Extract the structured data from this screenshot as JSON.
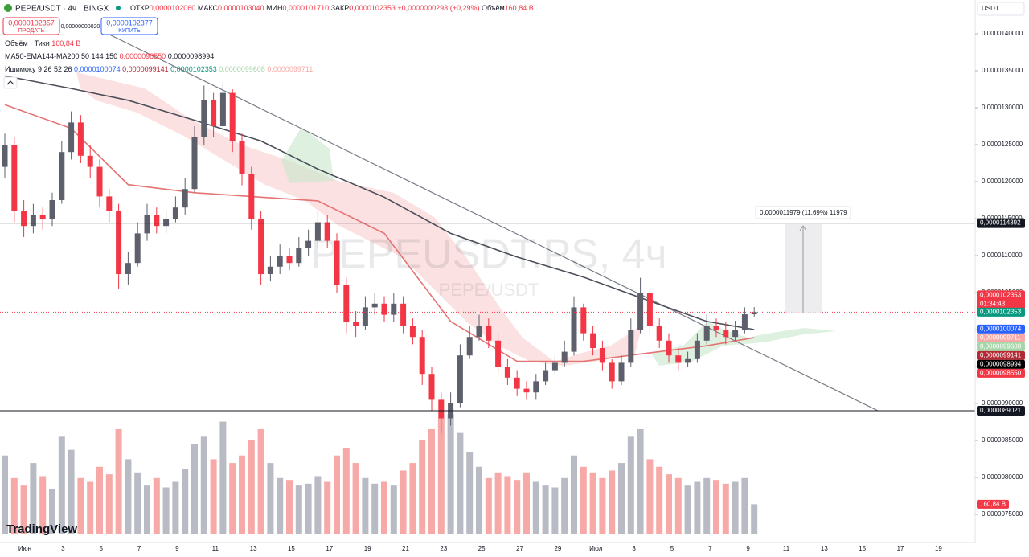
{
  "header": {
    "symbol": "PEPE/USDT · 4ч · BINGX",
    "open_label": "ОТКР",
    "open": "0,0000102060",
    "high_label": "МАКС",
    "high": "0,0000103040",
    "low_label": "МИН",
    "low": "0,0000101710",
    "close_label": "ЗАКР",
    "close": "0,0000102353",
    "change": "+0,0000000293 (+0,29%)",
    "volume_label": "Объём",
    "volume": "160,84 B"
  },
  "trade": {
    "sell_price": "0,0000102357",
    "sell_label": "ПРОДАТЬ",
    "spread": "0,00000000020",
    "buy_price": "0,0000102377",
    "buy_label": "КУПИТЬ"
  },
  "indicators": {
    "volume": {
      "name": "Объём · Тики",
      "value": "160,84 B"
    },
    "ma": {
      "name": "MA50-EMA144-MA200 50 144 150",
      "values": [
        "0,0000098550",
        "0,0000098994"
      ]
    },
    "ichimoku": {
      "name": "Ишимоку 9 26 52 26",
      "values": [
        "0,0000100074",
        "0,0000099141",
        "0,0000102353",
        "0,0000099608",
        "0,0000099711"
      ]
    }
  },
  "watermark": {
    "symbol": "PEPEUSDT.PS, 4ч",
    "pair": "PEPE/USDT"
  },
  "currency": "USDT",
  "measure": "0,0000011979 (11,69%) 11979",
  "logo": "TradingView",
  "countdown": "01:34:43",
  "chart_data": {
    "type": "candlestick",
    "ylim": [
      7.1522e-06,
      1.44565e-05
    ],
    "yticks": [
      {
        "value": 1.4e-05,
        "label": "0,0000140000"
      },
      {
        "value": 1.35e-05,
        "label": "0,0000135000"
      },
      {
        "value": 1.3e-05,
        "label": "0,0000130000"
      },
      {
        "value": 1.25e-05,
        "label": "0,0000125000"
      },
      {
        "value": 1.2e-05,
        "label": "0,0000120000"
      },
      {
        "value": 1.15e-05,
        "label": "0,0000115000"
      },
      {
        "value": 1.1e-05,
        "label": "0,0000110000"
      },
      {
        "value": 1.05e-05,
        "label": "0,0000105000"
      },
      {
        "value": 1e-05,
        "label": "0,0000100000"
      },
      {
        "value": 9.5e-06,
        "label": "0,0000095000"
      },
      {
        "value": 9e-06,
        "label": "0,0000090000"
      },
      {
        "value": 8.5e-06,
        "label": "0,0000085000"
      },
      {
        "value": 8e-06,
        "label": "0,0000080000"
      },
      {
        "value": 7.5e-06,
        "label": "0,0000075000"
      }
    ],
    "x_labels": [
      "Июн",
      "3",
      "5",
      "7",
      "9",
      "11",
      "13",
      "15",
      "17",
      "19",
      "21",
      "23",
      "25",
      "27",
      "29",
      "Июл",
      "3",
      "5",
      "7",
      "9",
      "11",
      "13",
      "15",
      "17",
      "19"
    ],
    "up_color": "#5d606b",
    "down_color": "#f23645",
    "volume_up_color": "#b8bbc3",
    "volume_down_color": "#f7a9a7",
    "candles": [
      [
        1.22e-05,
        1.265e-05,
        1.205e-05,
        1.25e-05
      ],
      [
        1.25e-05,
        1.26e-05,
        1.145e-05,
        1.16e-05
      ],
      [
        1.16e-05,
        1.175e-05,
        1.125e-05,
        1.14e-05
      ],
      [
        1.14e-05,
        1.17e-05,
        1.13e-05,
        1.155e-05
      ],
      [
        1.155e-05,
        1.165e-05,
        1.135e-05,
        1.15e-05
      ],
      [
        1.15e-05,
        1.185e-05,
        1.14e-05,
        1.175e-05
      ],
      [
        1.175e-05,
        1.255e-05,
        1.17e-05,
        1.24e-05
      ],
      [
        1.24e-05,
        1.295e-05,
        1.23e-05,
        1.28e-05
      ],
      [
        1.28e-05,
        1.29e-05,
        1.225e-05,
        1.235e-05
      ],
      [
        1.235e-05,
        1.25e-05,
        1.205e-05,
        1.22e-05
      ],
      [
        1.22e-05,
        1.23e-05,
        1.165e-05,
        1.18e-05
      ],
      [
        1.18e-05,
        1.19e-05,
        1.145e-05,
        1.16e-05
      ],
      [
        1.16e-05,
        1.17e-05,
        1.055e-05,
        1.075e-05
      ],
      [
        1.075e-05,
        1.105e-05,
        1.06e-05,
        1.09e-05
      ],
      [
        1.09e-05,
        1.145e-05,
        1.085e-05,
        1.13e-05
      ],
      [
        1.13e-05,
        1.17e-05,
        1.12e-05,
        1.155e-05
      ],
      [
        1.155e-05,
        1.165e-05,
        1.13e-05,
        1.14e-05
      ],
      [
        1.14e-05,
        1.16e-05,
        1.13e-05,
        1.15e-05
      ],
      [
        1.15e-05,
        1.18e-05,
        1.145e-05,
        1.165e-05
      ],
      [
        1.165e-05,
        1.205e-05,
        1.155e-05,
        1.19e-05
      ],
      [
        1.19e-05,
        1.275e-05,
        1.185e-05,
        1.26e-05
      ],
      [
        1.26e-05,
        1.33e-05,
        1.25e-05,
        1.31e-05
      ],
      [
        1.31e-05,
        1.32e-05,
        1.26e-05,
        1.275e-05
      ],
      [
        1.275e-05,
        1.335e-05,
        1.265e-05,
        1.32e-05
      ],
      [
        1.32e-05,
        1.325e-05,
        1.24e-05,
        1.255e-05
      ],
      [
        1.255e-05,
        1.265e-05,
        1.195e-05,
        1.21e-05
      ],
      [
        1.21e-05,
        1.22e-05,
        1.135e-05,
        1.15e-05
      ],
      [
        1.15e-05,
        1.16e-05,
        1.06e-05,
        1.075e-05
      ],
      [
        1.075e-05,
        1.1e-05,
        1.065e-05,
        1.085e-05
      ],
      [
        1.085e-05,
        1.115e-05,
        1.075e-05,
        1.1e-05
      ],
      [
        1.1e-05,
        1.11e-05,
        1.08e-05,
        1.09e-05
      ],
      [
        1.09e-05,
        1.125e-05,
        1.085e-05,
        1.11e-05
      ],
      [
        1.11e-05,
        1.135e-05,
        1.1e-05,
        1.12e-05
      ],
      [
        1.12e-05,
        1.16e-05,
        1.11e-05,
        1.145e-05
      ],
      [
        1.145e-05,
        1.155e-05,
        1.11e-05,
        1.12e-05
      ],
      [
        1.12e-05,
        1.13e-05,
        1.05e-05,
        1.06e-05
      ],
      [
        1.06e-05,
        1.07e-05,
        9.95e-06,
        1.01e-05
      ],
      [
        1.01e-05,
        1.025e-05,
        9.9e-06,
        1.005e-05
      ],
      [
        1.005e-05,
        1.045e-05,
        1e-05,
        1.03e-05
      ],
      [
        1.03e-05,
        1.05e-05,
        1.02e-05,
        1.035e-05
      ],
      [
        1.035e-05,
        1.045e-05,
        1.01e-05,
        1.02e-05
      ],
      [
        1.02e-05,
        1.05e-05,
        1.01e-05,
        1.035e-05
      ],
      [
        1.035e-05,
        1.045e-05,
        9.95e-06,
        1.005e-05
      ],
      [
        1.005e-05,
        1.015e-05,
        9.8e-06,
        9.9e-06
      ],
      [
        9.9e-06,
        1e-05,
        9.25e-06,
        9.4e-06
      ],
      [
        9.4e-06,
        9.5e-06,
        8.9e-06,
        9.05e-06
      ],
      [
        9.05e-06,
        9.15e-06,
        8.6e-06,
        8.8e-06
      ],
      [
        8.8e-06,
        9.15e-06,
        8.7e-06,
        9e-06
      ],
      [
        9e-06,
        9.8e-06,
        8.95e-06,
        9.65e-06
      ],
      [
        9.65e-06,
        1.005e-05,
        9.6e-06,
        9.9e-06
      ],
      [
        9.9e-06,
        1.02e-05,
        9.85e-06,
        1.005e-05
      ],
      [
        1.005e-05,
        1.015e-05,
        9.75e-06,
        9.85e-06
      ],
      [
        9.85e-06,
        9.95e-06,
        9.4e-06,
        9.5e-06
      ],
      [
        9.5e-06,
        9.6e-06,
        9.25e-06,
        9.35e-06
      ],
      [
        9.35e-06,
        9.45e-06,
        9.1e-06,
        9.2e-06
      ],
      [
        9.2e-06,
        9.3e-06,
        9.05e-06,
        9.15e-06
      ],
      [
        9.15e-06,
        9.4e-06,
        9.05e-06,
        9.3e-06
      ],
      [
        9.3e-06,
        9.55e-06,
        9.25e-06,
        9.45e-06
      ],
      [
        9.45e-06,
        9.65e-06,
        9.4e-06,
        9.55e-06
      ],
      [
        9.55e-06,
        9.85e-06,
        9.5e-06,
        9.7e-06
      ],
      [
        9.7e-06,
        1.045e-05,
        9.65e-06,
        1.03e-05
      ],
      [
        1.03e-05,
        1.035e-05,
        9.85e-06,
        9.95e-06
      ],
      [
        9.95e-06,
        1.005e-05,
        9.65e-06,
        9.75e-06
      ],
      [
        9.75e-06,
        9.85e-06,
        9.45e-06,
        9.55e-06
      ],
      [
        9.55e-06,
        9.6e-06,
        9.2e-06,
        9.3e-06
      ],
      [
        9.3e-06,
        9.65e-06,
        9.25e-06,
        9.55e-06
      ],
      [
        9.55e-06,
        1.015e-05,
        9.5e-06,
        1e-05
      ],
      [
        1e-05,
        1.07e-05,
        9.95e-06,
        1.05e-05
      ],
      [
        1.05e-05,
        1.055e-05,
        9.95e-06,
        1.005e-05
      ],
      [
        1.005e-05,
        1.015e-05,
        9.75e-06,
        9.85e-06
      ],
      [
        9.85e-06,
        9.95e-06,
        9.55e-06,
        9.65e-06
      ],
      [
        9.65e-06,
        9.75e-06,
        9.45e-06,
        9.55e-06
      ],
      [
        9.55e-06,
        9.7e-06,
        9.5e-06,
        9.6e-06
      ],
      [
        9.6e-06,
        9.95e-06,
        9.55e-06,
        9.85e-06
      ],
      [
        9.85e-06,
        1.02e-05,
        9.8e-06,
        1.005e-05
      ],
      [
        1.005e-05,
        1.015e-05,
        9.9e-06,
        1e-05
      ],
      [
        1e-05,
        1.01e-05,
        9.8e-06,
        9.9e-06
      ],
      [
        9.9e-06,
        1.012e-05,
        9.85e-06,
        1e-05
      ],
      [
        1e-05,
        1.03e-05,
        9.95e-06,
        1.0206e-05
      ],
      [
        1.0206e-05,
        1.0304e-05,
        1.0171e-05,
        1.02353e-05
      ]
    ],
    "volumes": [
      420,
      300,
      260,
      380,
      310,
      240,
      520,
      450,
      300,
      280,
      360,
      320,
      560,
      400,
      330,
      260,
      300,
      250,
      280,
      350,
      480,
      520,
      400,
      600,
      380,
      420,
      500,
      560,
      380,
      300,
      290,
      260,
      270,
      310,
      280,
      420,
      460,
      380,
      300,
      270,
      280,
      260,
      340,
      380,
      500,
      560,
      620,
      640,
      540,
      440,
      360,
      300,
      330,
      310,
      290,
      330,
      280,
      260,
      250,
      300,
      420,
      360,
      330,
      300,
      340,
      380,
      520,
      560,
      400,
      360,
      320,
      300,
      260,
      280,
      300,
      290,
      270,
      280,
      300,
      160.84
    ],
    "lines": [
      {
        "color": "#4a4e59",
        "x": [
          0,
          7,
          13,
          20,
          27,
          33,
          40,
          47,
          54,
          61,
          67,
          74,
          79
        ],
        "values": [
          1.343e-05,
          1.326e-05,
          1.31e-05,
          1.283e-05,
          1.255e-05,
          1.217e-05,
          1.179e-05,
          1.13e-05,
          1.098e-05,
          1.071e-05,
          1.043e-05,
          1.011e-05,
          1e-05
        ]
      },
      {
        "color": "#e57373",
        "x": [
          0,
          7,
          13,
          20,
          27,
          33,
          40,
          47,
          54,
          61,
          67,
          74,
          79
        ],
        "values": [
          1.304e-05,
          1.272e-05,
          1.196e-05,
          1.185e-05,
          1.179e-05,
          1.174e-05,
          1.13e-05,
          1.011e-05,
          9.57e-06,
          9.57e-06,
          9.67e-06,
          9.78e-06,
          9.89e-06
        ]
      }
    ],
    "levels": [
      {
        "value": 1.14392e-05,
        "label": "0,0000114392"
      },
      {
        "value": 8.9021e-06,
        "label": "0,0000089021"
      }
    ],
    "price_tags": [
      {
        "value": 1.02353e-05,
        "label": "0,0000102353",
        "color": "#089981"
      },
      {
        "value": 1.00074e-05,
        "label": "0,0000100074",
        "color": "#2962ff"
      },
      {
        "value": 9.9711e-06,
        "label": "0,0000099711",
        "color": "#f7a9a7"
      },
      {
        "value": 9.9608e-06,
        "label": "0,0000099608",
        "color": "#a5d6a7"
      },
      {
        "value": 9.9141e-06,
        "label": "0,0000099141",
        "color": "#b22833"
      },
      {
        "value": 9.8994e-06,
        "label": "0,0000098994",
        "color": "#000000"
      },
      {
        "value": 9.855e-06,
        "label": "0,0000098550",
        "color": "#f23645"
      }
    ],
    "last_price": {
      "value": 1.02353e-05,
      "label": "0,0000102353",
      "color": "#f23645"
    },
    "volume_tag": {
      "value": 160.84,
      "label": "160,84 B",
      "color": "#f23645"
    }
  }
}
